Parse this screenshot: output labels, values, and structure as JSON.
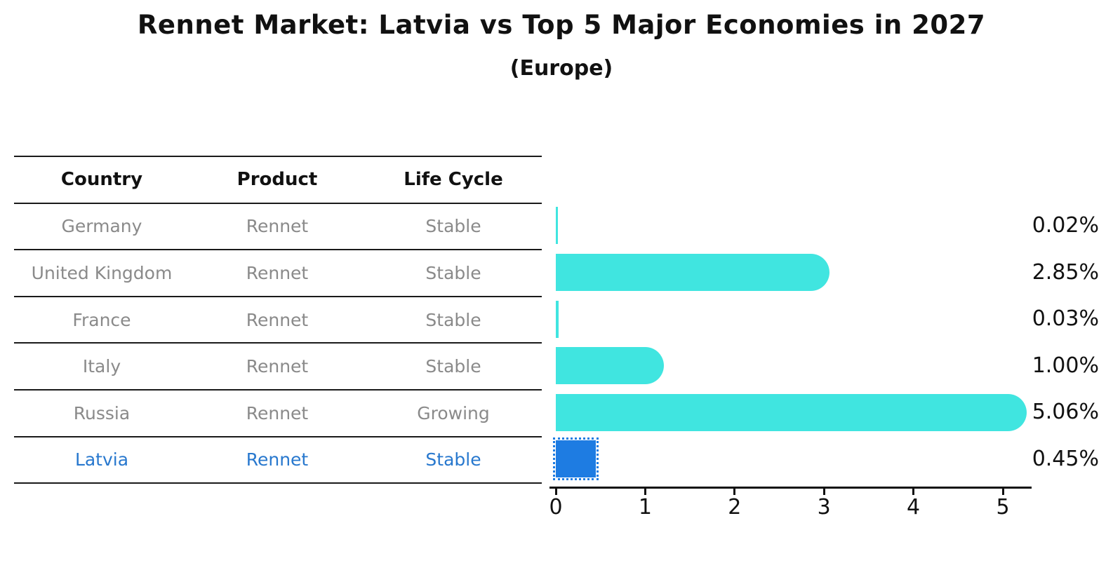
{
  "title": "Rennet Market: Latvia vs Top 5 Major Economies in 2027",
  "subtitle": "(Europe)",
  "table": {
    "headers": [
      "Country",
      "Product",
      "Life Cycle"
    ],
    "rows": [
      {
        "country": "Germany",
        "product": "Rennet",
        "life_cycle": "Stable",
        "highlighted": false
      },
      {
        "country": "United Kingdom",
        "product": "Rennet",
        "life_cycle": "Stable",
        "highlighted": false
      },
      {
        "country": "France",
        "product": "Rennet",
        "life_cycle": "Stable",
        "highlighted": false
      },
      {
        "country": "Italy",
        "product": "Rennet",
        "life_cycle": "Stable",
        "highlighted": false
      },
      {
        "country": "Russia",
        "product": "Rennet",
        "life_cycle": "Growing",
        "highlighted": false
      },
      {
        "country": "Latvia",
        "product": "Rennet",
        "life_cycle": "Stable",
        "highlighted": true
      }
    ]
  },
  "chart_data": {
    "type": "bar",
    "orientation": "horizontal",
    "title": "Rennet Market: Latvia vs Top 5 Major Economies in 2027",
    "subtitle": "(Europe)",
    "categories": [
      "Germany",
      "United Kingdom",
      "France",
      "Italy",
      "Russia",
      "Latvia"
    ],
    "values": [
      0.02,
      2.85,
      0.03,
      1.0,
      5.06,
      0.45
    ],
    "value_labels": [
      "0.02%",
      "2.85%",
      "0.03%",
      "1.00%",
      "5.06%",
      "0.45%"
    ],
    "xlabel": "",
    "ylabel": "",
    "xticks": [
      0,
      1,
      2,
      3,
      4,
      5
    ],
    "xlim": [
      0,
      5.4
    ],
    "grid": false,
    "legend": false,
    "highlight_index": 5
  },
  "colors": {
    "bar_cyan": "#40e5e0",
    "bar_blue": "#1e7ce2",
    "highlight_text": "#2878ce",
    "muted_text": "#8a8a8a",
    "text": "#111111",
    "line": "#1a1a1a"
  }
}
